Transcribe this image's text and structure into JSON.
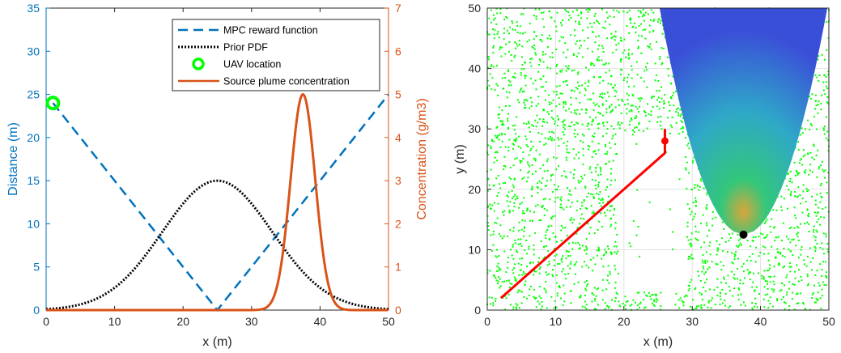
{
  "chart_data": [
    {
      "type": "line",
      "xlabel": "x (m)",
      "ylabel_left": "Distance (m)",
      "ylabel_right": "Concentration (g/m3)",
      "xlim": [
        0,
        50
      ],
      "ylim_left": [
        0,
        35
      ],
      "ylim_right": [
        0,
        7
      ],
      "xticks": [
        "0",
        "10",
        "20",
        "30",
        "40",
        "50"
      ],
      "yticks_left": [
        "0",
        "5",
        "10",
        "15",
        "20",
        "25",
        "30",
        "35"
      ],
      "yticks_right": [
        "0",
        "1",
        "2",
        "3",
        "4",
        "5",
        "6",
        "7"
      ],
      "grid": false,
      "legend_position": "top-right",
      "series": [
        {
          "name": "MPC reward function",
          "axis": "left",
          "style": "dashed",
          "color": "#0072BD",
          "x": [
            1,
            25,
            50
          ],
          "y": [
            24,
            0,
            25
          ]
        },
        {
          "name": "Prior PDF",
          "axis": "left",
          "style": "dotted",
          "color": "#000000",
          "x": [
            0,
            5,
            10,
            15,
            20,
            25,
            30,
            35,
            40,
            45,
            50
          ],
          "y": [
            0.2,
            0.9,
            3.0,
            7.1,
            12.2,
            15,
            12.2,
            7.1,
            3.0,
            0.9,
            0.2
          ]
        },
        {
          "name": "UAV location",
          "axis": "left",
          "style": "marker",
          "color": "#00FF00",
          "x": [
            1
          ],
          "y": [
            24
          ]
        },
        {
          "name": "Source plume concentration",
          "axis": "right",
          "style": "solid",
          "color": "#D95319",
          "x": [
            30,
            32,
            33,
            34,
            35,
            36,
            37,
            37.5,
            38,
            39,
            40,
            41,
            42,
            43,
            44,
            50
          ],
          "y": [
            0,
            0.05,
            0.3,
            0.8,
            2.0,
            3.7,
            4.8,
            5.0,
            4.8,
            3.8,
            2.5,
            1.4,
            0.6,
            0.2,
            0,
            0
          ]
        }
      ]
    },
    {
      "type": "scatter",
      "xlabel": "x (m)",
      "ylabel": "y (m)",
      "xlim": [
        0,
        50
      ],
      "ylim": [
        0,
        50
      ],
      "xticks": [
        "0",
        "10",
        "20",
        "30",
        "40",
        "50"
      ],
      "yticks": [
        "0",
        "10",
        "20",
        "30",
        "40",
        "50"
      ],
      "grid": true,
      "particle_color": "#00FF00",
      "plume": {
        "colors": [
          "#3A4FD8",
          "#2FA8C8",
          "#33C77A",
          "#D9A63A"
        ],
        "center_x": 37.5,
        "tip_y": 12.5,
        "half_width": 8.5
      },
      "path": {
        "color": "#FF0000",
        "x": [
          2,
          26,
          26,
          26
        ],
        "y": [
          2,
          26,
          28,
          30
        ]
      },
      "path_end": {
        "x": 26,
        "y": 28
      },
      "source": {
        "x": 37.5,
        "y": 12.5,
        "color": "#000000"
      }
    }
  ]
}
